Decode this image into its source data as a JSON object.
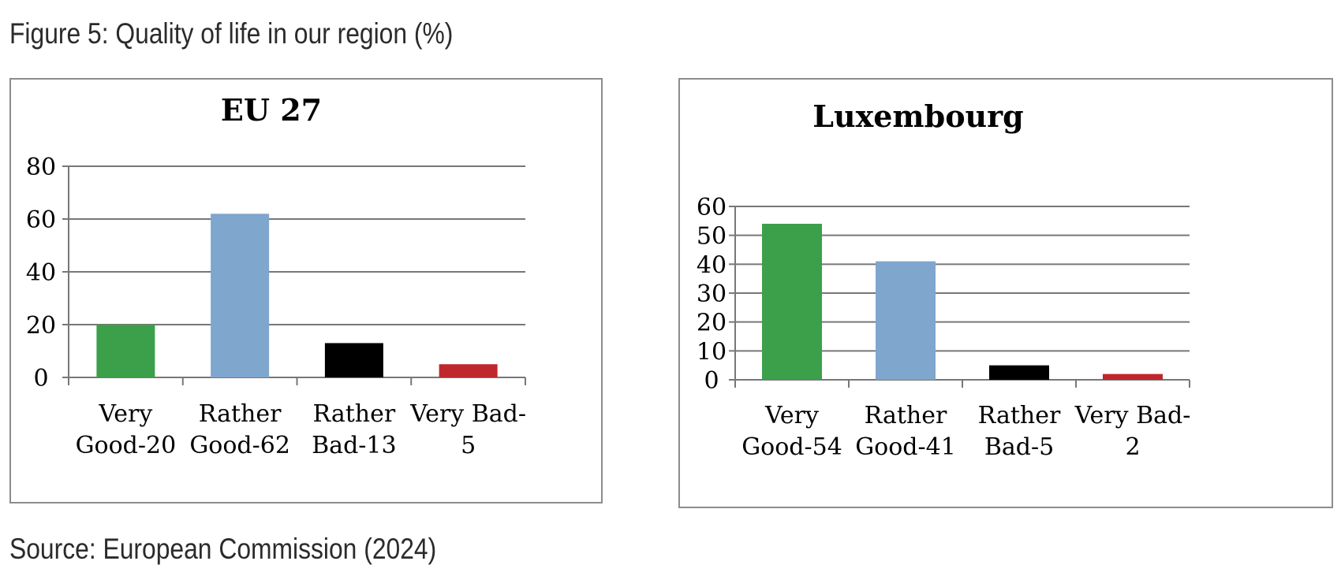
{
  "figure": {
    "title": "Figure 5: Quality of life in our region (%)",
    "source": "Source: European Commission (2024)"
  },
  "chart_data": [
    {
      "type": "bar",
      "title": "EU 27",
      "categories": [
        [
          "Very",
          "Good-20"
        ],
        [
          "Rather",
          "Good-62"
        ],
        [
          "Rather",
          "Bad-13"
        ],
        [
          "Very Bad-",
          "5"
        ]
      ],
      "values": [
        20,
        62,
        13,
        5
      ],
      "colors": [
        "#3ca04a",
        "#7fa6cd",
        "#000000",
        "#c0272d"
      ],
      "ylim": [
        0,
        80
      ],
      "yticks": [
        0,
        20,
        40,
        60,
        80
      ],
      "grid": true,
      "xlabel": "",
      "ylabel": ""
    },
    {
      "type": "bar",
      "title": "Luxembourg",
      "categories": [
        [
          "Very",
          "Good-54"
        ],
        [
          "Rather",
          "Good-41"
        ],
        [
          "Rather",
          "Bad-5"
        ],
        [
          "Very Bad-",
          "2"
        ]
      ],
      "values": [
        54,
        41,
        5,
        2
      ],
      "colors": [
        "#3ca04a",
        "#7fa6cd",
        "#000000",
        "#c0272d"
      ],
      "ylim": [
        0,
        60
      ],
      "yticks": [
        0,
        10,
        20,
        30,
        40,
        50,
        60
      ],
      "grid": true,
      "xlabel": "",
      "ylabel": ""
    }
  ]
}
